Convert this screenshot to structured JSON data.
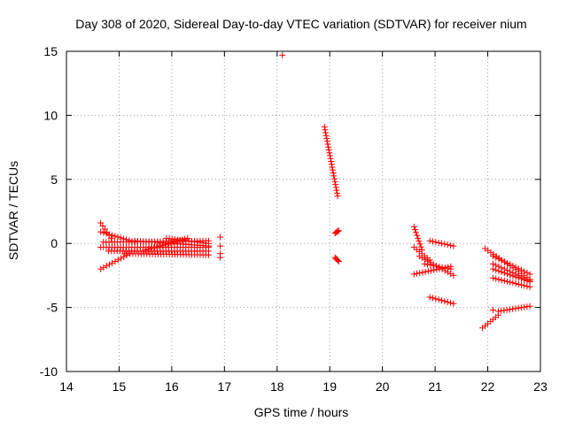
{
  "chart_data": {
    "type": "scatter",
    "title": "Day 308 of 2020, Sidereal Day-to-day VTEC variation (SDTVAR) for receiver nium",
    "xlabel": "GPS time / hours",
    "ylabel": "SDTVAR / TECUs",
    "xlim": [
      14,
      23
    ],
    "ylim": [
      -10,
      15
    ],
    "xticks": [
      14,
      15,
      16,
      17,
      18,
      19,
      20,
      21,
      22,
      23
    ],
    "yticks": [
      -10,
      -5,
      0,
      5,
      10,
      15
    ],
    "xtick_labels": [
      "14",
      "15",
      "16",
      "17",
      "18",
      "19",
      "20",
      "21",
      "22",
      "23"
    ],
    "ytick_labels": [
      "-10",
      "-5",
      "0",
      "5",
      "10",
      "15"
    ],
    "grid": true,
    "marker": "+",
    "series": [
      {
        "name": "SDTVAR",
        "color": "#ff0000",
        "segments": [
          {
            "x0": 14.65,
            "x1": 14.85,
            "y0": 1.6,
            "y1": 0.4
          },
          {
            "x0": 14.65,
            "x1": 15.3,
            "y0": 0.9,
            "y1": 0.1
          },
          {
            "x0": 14.65,
            "x1": 16.7,
            "y0": -0.3,
            "y1": -0.3
          },
          {
            "x0": 14.7,
            "x1": 16.7,
            "y0": 0.1,
            "y1": 0.2
          },
          {
            "x0": 14.8,
            "x1": 16.7,
            "y0": -0.6,
            "y1": -0.6
          },
          {
            "x0": 15.1,
            "x1": 16.7,
            "y0": -0.8,
            "y1": -0.9
          },
          {
            "x0": 15.3,
            "x1": 16.7,
            "y0": 0.2,
            "y1": -0.2
          },
          {
            "x0": 14.65,
            "x1": 15.2,
            "y0": -2.0,
            "y1": -0.8
          },
          {
            "x0": 15.5,
            "x1": 16.3,
            "y0": -0.5,
            "y1": 0.4
          },
          {
            "x0": 15.9,
            "x1": 16.7,
            "y0": 0.4,
            "y1": 0.0
          },
          {
            "x0": 18.9,
            "x1": 19.15,
            "y0": 9.1,
            "y1": 3.7
          },
          {
            "x0": 19.1,
            "x1": 19.17,
            "y0": 0.8,
            "y1": 1.0
          },
          {
            "x0": 19.1,
            "x1": 19.17,
            "y0": -1.1,
            "y1": -1.4
          },
          {
            "x0": 20.6,
            "x1": 20.75,
            "y0": 1.3,
            "y1": -0.5
          },
          {
            "x0": 20.6,
            "x1": 20.9,
            "y0": -0.3,
            "y1": -1.3
          },
          {
            "x0": 20.6,
            "x1": 21.3,
            "y0": -2.4,
            "y1": -1.8
          },
          {
            "x0": 20.7,
            "x1": 21.35,
            "y0": -1.0,
            "y1": -2.5
          },
          {
            "x0": 20.8,
            "x1": 21.3,
            "y0": -1.6,
            "y1": -2.0
          },
          {
            "x0": 20.9,
            "x1": 21.35,
            "y0": 0.2,
            "y1": -0.2
          },
          {
            "x0": 20.9,
            "x1": 21.35,
            "y0": -4.2,
            "y1": -4.7
          },
          {
            "x0": 21.95,
            "x1": 22.8,
            "y0": -0.4,
            "y1": -2.8
          },
          {
            "x0": 22.1,
            "x1": 22.8,
            "y0": -1.0,
            "y1": -2.4
          },
          {
            "x0": 22.1,
            "x1": 22.8,
            "y0": -2.0,
            "y1": -3.0
          },
          {
            "x0": 22.1,
            "x1": 22.8,
            "y0": -2.7,
            "y1": -3.4
          },
          {
            "x0": 22.1,
            "x1": 22.8,
            "y0": -1.6,
            "y1": -2.9
          },
          {
            "x0": 21.9,
            "x1": 22.2,
            "y0": -6.6,
            "y1": -5.6
          },
          {
            "x0": 22.2,
            "x1": 22.8,
            "y0": -5.3,
            "y1": -4.9
          }
        ],
        "points": [
          {
            "x": 16.92,
            "y": 0.5
          },
          {
            "x": 16.92,
            "y": -0.2
          },
          {
            "x": 16.92,
            "y": -0.8
          },
          {
            "x": 16.92,
            "y": -1.1
          },
          {
            "x": 18.1,
            "y": 14.7
          },
          {
            "x": 22.1,
            "y": -5.2
          }
        ]
      }
    ]
  }
}
